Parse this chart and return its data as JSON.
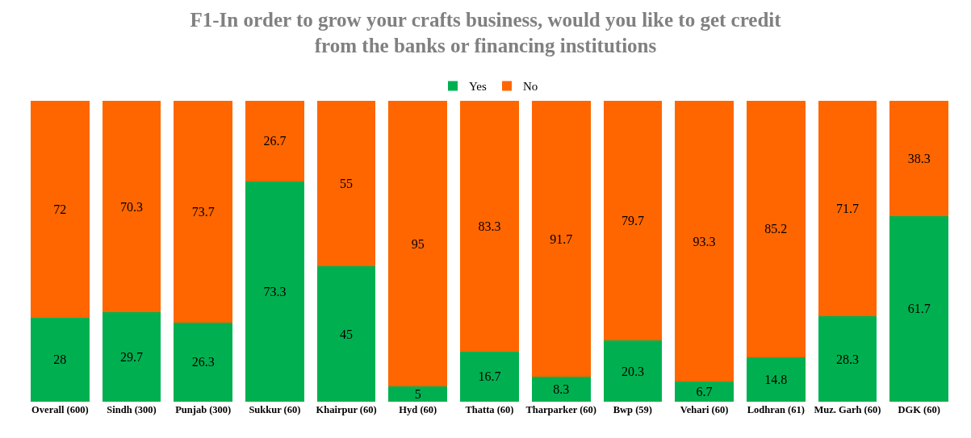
{
  "chart_data": {
    "type": "bar",
    "stacked": true,
    "title": "F1-In order to grow your crafts business, would you like to get credit\nfrom the banks or financing institutions",
    "categories": [
      "Overall (600)",
      "Sindh (300)",
      "Punjab (300)",
      "Sukkur (60)",
      "Khairpur (60)",
      "Hyd (60)",
      "Thatta (60)",
      "Tharparker (60)",
      "Bwp (59)",
      "Vehari (60)",
      "Lodhran (61)",
      "Muz. Garh (60)",
      "DGK (60)"
    ],
    "series": [
      {
        "name": "Yes",
        "color": "#00b050",
        "values": [
          28,
          29.7,
          26.3,
          73.3,
          45,
          5,
          16.7,
          8.3,
          20.3,
          6.7,
          14.8,
          28.3,
          61.7
        ]
      },
      {
        "name": "No",
        "color": "#ff6600",
        "values": [
          72,
          70.3,
          73.7,
          26.7,
          55,
          95,
          83.3,
          91.7,
          79.7,
          93.3,
          85.2,
          71.7,
          38.3
        ]
      }
    ],
    "data_labels": true,
    "legend": "top",
    "tick_labels": "x"
  }
}
